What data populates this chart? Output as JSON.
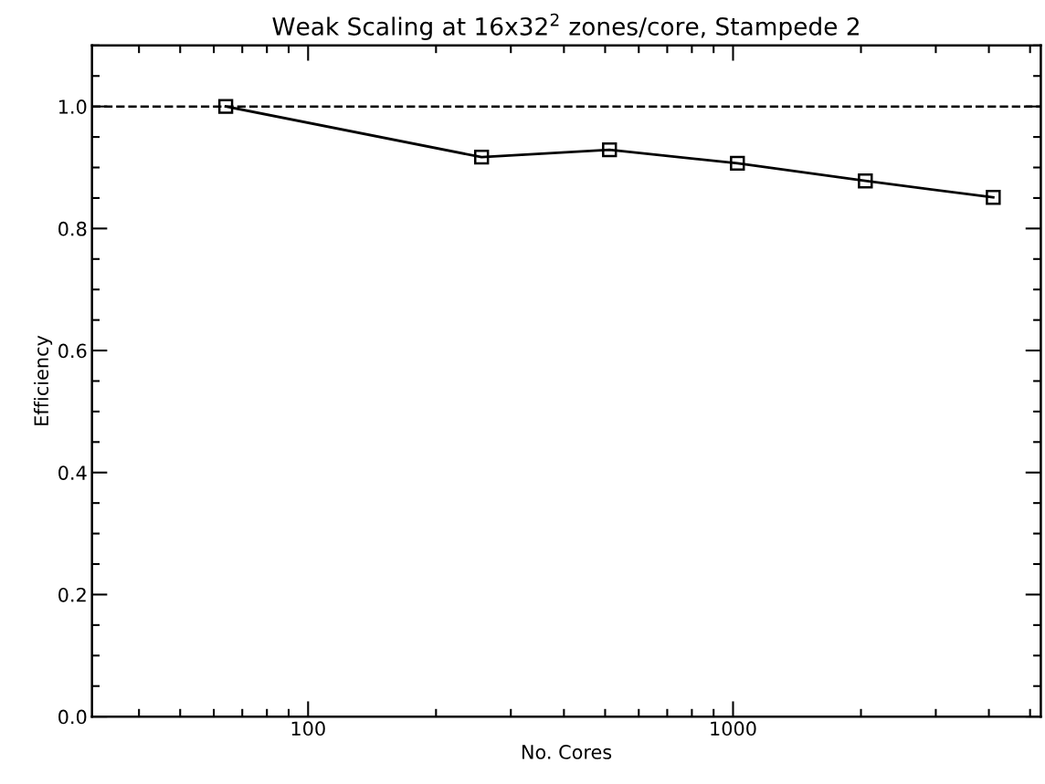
{
  "chart_data": {
    "type": "line",
    "title": "Weak Scaling at 16x32$^{2}$ zones/core, Stampede 2",
    "xlabel": "No. Cores",
    "ylabel": "Efficiency",
    "x": [
      64,
      256,
      512,
      1024,
      2048,
      4096
    ],
    "series": [
      {
        "color": "#000000",
        "values": [
          1.0,
          0.917,
          0.929,
          0.907,
          0.878,
          0.851
        ]
      }
    ],
    "log": "x",
    "xlim": [
      31,
      5300
    ],
    "xticks": [
      100,
      1000
    ],
    "ylim": [
      0,
      1.1
    ],
    "yticks": [
      {
        "value": 0,
        "label": "0.0"
      },
      0.2,
      0.4,
      0.6,
      0.8,
      {
        "value": 1,
        "label": "1.0"
      }
    ],
    "marker": "square",
    "line_style": "solid",
    "grid": false,
    "legend": false,
    "ref_lines": [
      {
        "axis": "y",
        "value": 1.0,
        "line_style": "dashed",
        "color": "#000000"
      }
    ]
  }
}
